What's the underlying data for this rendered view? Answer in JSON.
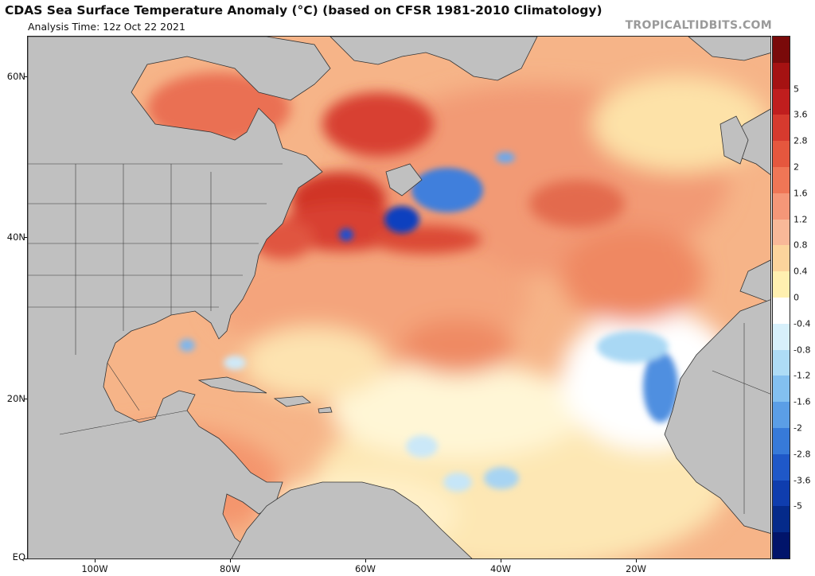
{
  "header": {
    "title": "CDAS Sea Surface Temperature Anomaly (°C) (based on CFSR 1981-2010 Climatology)",
    "subtitle": "Analysis Time: 12z Oct 22 2021",
    "brand": "TROPICALTIDBITS.COM"
  },
  "map": {
    "region": "North Atlantic",
    "lat_range": [
      0,
      65
    ],
    "lon_range": [
      -110,
      0
    ],
    "latitude_labels": [
      {
        "label": "60N",
        "lat": 60
      },
      {
        "label": "40N",
        "lat": 40
      },
      {
        "label": "20N",
        "lat": 20
      },
      {
        "label": "EQ",
        "lat": 0
      }
    ],
    "longitude_labels": [
      {
        "label": "100W",
        "lon": -100
      },
      {
        "label": "80W",
        "lon": -80
      },
      {
        "label": "60W",
        "lon": -60
      },
      {
        "label": "40W",
        "lon": -40
      },
      {
        "label": "20W",
        "lon": -20
      }
    ],
    "colors": {
      "land": "#c0c0c0",
      "warm_base": "#f5b183",
      "white_zone": "#ffffff",
      "cold_strong": "#0a3fbf"
    }
  },
  "colorbar": {
    "labels": [
      "5",
      "3.6",
      "2.8",
      "2",
      "1.6",
      "1.2",
      "0.8",
      "0.4",
      "0",
      "-0.4",
      "-0.8",
      "-1.2",
      "-1.6",
      "-2",
      "-2.8",
      "-3.6",
      "-5"
    ],
    "colors": [
      "#7a0a0a",
      "#a51212",
      "#c01e1e",
      "#d63a2e",
      "#e5573e",
      "#ef7656",
      "#f59778",
      "#f8b898",
      "#fcd49c",
      "#fff0b0",
      "#ffffff",
      "#d7f0fb",
      "#aedcf6",
      "#83c0f0",
      "#5b9ee6",
      "#377ad9",
      "#1f58c8",
      "#0f3dae",
      "#052a8a",
      "#01146a"
    ]
  }
}
